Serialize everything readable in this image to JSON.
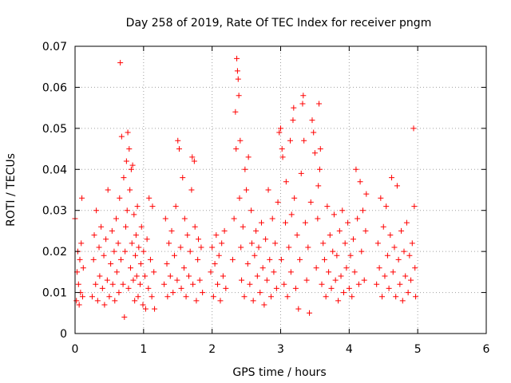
{
  "chart_data": {
    "type": "scatter",
    "title": "Day 258 of 2019, Rate Of TEC Index for receiver pngm",
    "xlabel": "GPS time / hours",
    "ylabel": "ROTI / TECUs",
    "xlim": [
      0,
      6
    ],
    "ylim": [
      0,
      0.07
    ],
    "xticks": [
      0,
      1,
      2,
      3,
      4,
      5,
      6
    ],
    "yticks": [
      0,
      0.01,
      0.02,
      0.03,
      0.04,
      0.05,
      0.06,
      0.07
    ],
    "xtick_labels": [
      "0",
      "1",
      "2",
      "3",
      "4",
      "5",
      "6"
    ],
    "ytick_labels": [
      "0",
      "0.01",
      "0.02",
      "0.03",
      "0.04",
      "0.05",
      "0.06",
      "0.07"
    ],
    "grid": true,
    "marker": "plus",
    "color": "#ff0000",
    "series": [
      {
        "name": "ROTI",
        "points": [
          [
            0.0,
            0.028
          ],
          [
            0.02,
            0.008
          ],
          [
            0.03,
            0.015
          ],
          [
            0.04,
            0.02
          ],
          [
            0.05,
            0.012
          ],
          [
            0.06,
            0.007
          ],
          [
            0.07,
            0.018
          ],
          [
            0.08,
            0.01
          ],
          [
            0.09,
            0.022
          ],
          [
            0.1,
            0.033
          ],
          [
            0.11,
            0.009
          ],
          [
            0.12,
            0.016
          ],
          [
            0.25,
            0.009
          ],
          [
            0.27,
            0.018
          ],
          [
            0.28,
            0.024
          ],
          [
            0.3,
            0.012
          ],
          [
            0.31,
            0.03
          ],
          [
            0.33,
            0.008
          ],
          [
            0.35,
            0.021
          ],
          [
            0.36,
            0.014
          ],
          [
            0.38,
            0.026
          ],
          [
            0.4,
            0.011
          ],
          [
            0.42,
            0.019
          ],
          [
            0.43,
            0.007
          ],
          [
            0.45,
            0.023
          ],
          [
            0.47,
            0.013
          ],
          [
            0.48,
            0.035
          ],
          [
            0.5,
            0.009
          ],
          [
            0.52,
            0.017
          ],
          [
            0.54,
            0.025
          ],
          [
            0.55,
            0.012
          ],
          [
            0.57,
            0.02
          ],
          [
            0.58,
            0.008
          ],
          [
            0.6,
            0.028
          ],
          [
            0.61,
            0.015
          ],
          [
            0.63,
            0.022
          ],
          [
            0.64,
            0.01
          ],
          [
            0.65,
            0.033
          ],
          [
            0.66,
            0.066
          ],
          [
            0.67,
            0.018
          ],
          [
            0.68,
            0.048
          ],
          [
            0.7,
            0.012
          ],
          [
            0.71,
            0.038
          ],
          [
            0.72,
            0.004
          ],
          [
            0.73,
            0.02
          ],
          [
            0.74,
            0.026
          ],
          [
            0.75,
            0.042
          ],
          [
            0.76,
            0.03
          ],
          [
            0.77,
            0.049
          ],
          [
            0.78,
            0.011
          ],
          [
            0.79,
            0.045
          ],
          [
            0.8,
            0.035
          ],
          [
            0.81,
            0.016
          ],
          [
            0.82,
            0.04
          ],
          [
            0.83,
            0.022
          ],
          [
            0.84,
            0.041
          ],
          [
            0.85,
            0.013
          ],
          [
            0.86,
            0.029
          ],
          [
            0.87,
            0.008
          ],
          [
            0.88,
            0.019
          ],
          [
            0.89,
            0.024
          ],
          [
            0.9,
            0.014
          ],
          [
            0.91,
            0.031
          ],
          [
            0.92,
            0.009
          ],
          [
            0.93,
            0.021
          ],
          [
            0.95,
            0.012
          ],
          [
            0.96,
            0.017
          ],
          [
            0.97,
            0.026
          ],
          [
            0.99,
            0.007
          ],
          [
            1.0,
            0.02
          ],
          [
            1.02,
            0.014
          ],
          [
            1.03,
            0.006
          ],
          [
            1.05,
            0.023
          ],
          [
            1.07,
            0.011
          ],
          [
            1.08,
            0.033
          ],
          [
            1.1,
            0.018
          ],
          [
            1.12,
            0.009
          ],
          [
            1.13,
            0.031
          ],
          [
            1.15,
            0.015
          ],
          [
            1.16,
            0.006
          ],
          [
            1.3,
            0.012
          ],
          [
            1.32,
            0.028
          ],
          [
            1.34,
            0.017
          ],
          [
            1.35,
            0.009
          ],
          [
            1.37,
            0.022
          ],
          [
            1.39,
            0.014
          ],
          [
            1.41,
            0.025
          ],
          [
            1.43,
            0.01
          ],
          [
            1.45,
            0.019
          ],
          [
            1.47,
            0.031
          ],
          [
            1.49,
            0.013
          ],
          [
            1.5,
            0.047
          ],
          [
            1.52,
            0.045
          ],
          [
            1.54,
            0.021
          ],
          [
            1.55,
            0.011
          ],
          [
            1.57,
            0.038
          ],
          [
            1.59,
            0.016
          ],
          [
            1.6,
            0.028
          ],
          [
            1.62,
            0.009
          ],
          [
            1.64,
            0.024
          ],
          [
            1.66,
            0.014
          ],
          [
            1.68,
            0.02
          ],
          [
            1.7,
            0.035
          ],
          [
            1.71,
            0.043
          ],
          [
            1.72,
            0.012
          ],
          [
            1.74,
            0.042
          ],
          [
            1.75,
            0.026
          ],
          [
            1.77,
            0.008
          ],
          [
            1.79,
            0.018
          ],
          [
            1.8,
            0.023
          ],
          [
            1.82,
            0.013
          ],
          [
            1.84,
            0.021
          ],
          [
            1.86,
            0.01
          ],
          [
            1.98,
            0.015
          ],
          [
            2.0,
            0.021
          ],
          [
            2.02,
            0.009
          ],
          [
            2.04,
            0.017
          ],
          [
            2.06,
            0.024
          ],
          [
            2.08,
            0.012
          ],
          [
            2.1,
            0.019
          ],
          [
            2.12,
            0.008
          ],
          [
            2.14,
            0.022
          ],
          [
            2.16,
            0.014
          ],
          [
            2.18,
            0.025
          ],
          [
            2.2,
            0.011
          ],
          [
            2.3,
            0.018
          ],
          [
            2.32,
            0.028
          ],
          [
            2.34,
            0.054
          ],
          [
            2.35,
            0.045
          ],
          [
            2.36,
            0.067
          ],
          [
            2.37,
            0.064
          ],
          [
            2.38,
            0.062
          ],
          [
            2.39,
            0.058
          ],
          [
            2.4,
            0.033
          ],
          [
            2.41,
            0.047
          ],
          [
            2.42,
            0.021
          ],
          [
            2.43,
            0.013
          ],
          [
            2.45,
            0.026
          ],
          [
            2.47,
            0.009
          ],
          [
            2.48,
            0.04
          ],
          [
            2.5,
            0.035
          ],
          [
            2.52,
            0.017
          ],
          [
            2.53,
            0.043
          ],
          [
            2.55,
            0.012
          ],
          [
            2.57,
            0.03
          ],
          [
            2.58,
            0.022
          ],
          [
            2.6,
            0.008
          ],
          [
            2.62,
            0.019
          ],
          [
            2.64,
            0.025
          ],
          [
            2.66,
            0.014
          ],
          [
            2.68,
            0.021
          ],
          [
            2.7,
            0.01
          ],
          [
            2.72,
            0.027
          ],
          [
            2.74,
            0.016
          ],
          [
            2.76,
            0.007
          ],
          [
            2.78,
            0.023
          ],
          [
            2.8,
            0.013
          ],
          [
            2.82,
            0.035
          ],
          [
            2.84,
            0.018
          ],
          [
            2.86,
            0.009
          ],
          [
            2.88,
            0.028
          ],
          [
            2.9,
            0.015
          ],
          [
            2.92,
            0.022
          ],
          [
            2.94,
            0.011
          ],
          [
            2.96,
            0.032
          ],
          [
            2.98,
            0.049
          ],
          [
            3.0,
            0.05
          ],
          [
            3.01,
            0.018
          ],
          [
            3.02,
            0.045
          ],
          [
            3.03,
            0.043
          ],
          [
            3.05,
            0.012
          ],
          [
            3.07,
            0.027
          ],
          [
            3.08,
            0.037
          ],
          [
            3.1,
            0.009
          ],
          [
            3.12,
            0.021
          ],
          [
            3.14,
            0.047
          ],
          [
            3.15,
            0.015
          ],
          [
            3.16,
            0.029
          ],
          [
            3.18,
            0.052
          ],
          [
            3.19,
            0.055
          ],
          [
            3.2,
            0.033
          ],
          [
            3.22,
            0.011
          ],
          [
            3.24,
            0.024
          ],
          [
            3.26,
            0.006
          ],
          [
            3.28,
            0.018
          ],
          [
            3.3,
            0.039
          ],
          [
            3.32,
            0.056
          ],
          [
            3.33,
            0.058
          ],
          [
            3.34,
            0.047
          ],
          [
            3.36,
            0.027
          ],
          [
            3.38,
            0.013
          ],
          [
            3.4,
            0.021
          ],
          [
            3.42,
            0.005
          ],
          [
            3.44,
            0.032
          ],
          [
            3.46,
            0.052
          ],
          [
            3.48,
            0.049
          ],
          [
            3.5,
            0.044
          ],
          [
            3.52,
            0.016
          ],
          [
            3.54,
            0.028
          ],
          [
            3.55,
            0.036
          ],
          [
            3.56,
            0.056
          ],
          [
            3.57,
            0.04
          ],
          [
            3.58,
            0.045
          ],
          [
            3.6,
            0.012
          ],
          [
            3.62,
            0.022
          ],
          [
            3.64,
            0.018
          ],
          [
            3.66,
            0.009
          ],
          [
            3.68,
            0.031
          ],
          [
            3.7,
            0.015
          ],
          [
            3.72,
            0.024
          ],
          [
            3.74,
            0.011
          ],
          [
            3.76,
            0.02
          ],
          [
            3.78,
            0.029
          ],
          [
            3.8,
            0.013
          ],
          [
            3.82,
            0.019
          ],
          [
            3.84,
            0.008
          ],
          [
            3.86,
            0.025
          ],
          [
            3.88,
            0.014
          ],
          [
            3.9,
            0.03
          ],
          [
            3.92,
            0.01
          ],
          [
            3.94,
            0.022
          ],
          [
            3.96,
            0.016
          ],
          [
            3.98,
            0.027
          ],
          [
            4.0,
            0.011
          ],
          [
            4.02,
            0.019
          ],
          [
            4.04,
            0.009
          ],
          [
            4.06,
            0.023
          ],
          [
            4.08,
            0.015
          ],
          [
            4.1,
            0.04
          ],
          [
            4.12,
            0.028
          ],
          [
            4.14,
            0.012
          ],
          [
            4.16,
            0.037
          ],
          [
            4.18,
            0.02
          ],
          [
            4.2,
            0.03
          ],
          [
            4.22,
            0.013
          ],
          [
            4.24,
            0.025
          ],
          [
            4.25,
            0.034
          ],
          [
            4.4,
            0.012
          ],
          [
            4.42,
            0.022
          ],
          [
            4.44,
            0.016
          ],
          [
            4.46,
            0.033
          ],
          [
            4.48,
            0.009
          ],
          [
            4.5,
            0.026
          ],
          [
            4.52,
            0.014
          ],
          [
            4.54,
            0.031
          ],
          [
            4.56,
            0.019
          ],
          [
            4.58,
            0.011
          ],
          [
            4.6,
            0.024
          ],
          [
            4.62,
            0.038
          ],
          [
            4.64,
            0.015
          ],
          [
            4.66,
            0.021
          ],
          [
            4.68,
            0.009
          ],
          [
            4.7,
            0.036
          ],
          [
            4.72,
            0.018
          ],
          [
            4.74,
            0.012
          ],
          [
            4.76,
            0.025
          ],
          [
            4.78,
            0.008
          ],
          [
            4.8,
            0.02
          ],
          [
            4.82,
            0.014
          ],
          [
            4.84,
            0.027
          ],
          [
            4.86,
            0.01
          ],
          [
            4.88,
            0.019
          ],
          [
            4.9,
            0.013
          ],
          [
            4.92,
            0.022
          ],
          [
            4.94,
            0.05
          ],
          [
            4.95,
            0.031
          ],
          [
            4.96,
            0.016
          ],
          [
            4.97,
            0.009
          ]
        ]
      }
    ]
  }
}
